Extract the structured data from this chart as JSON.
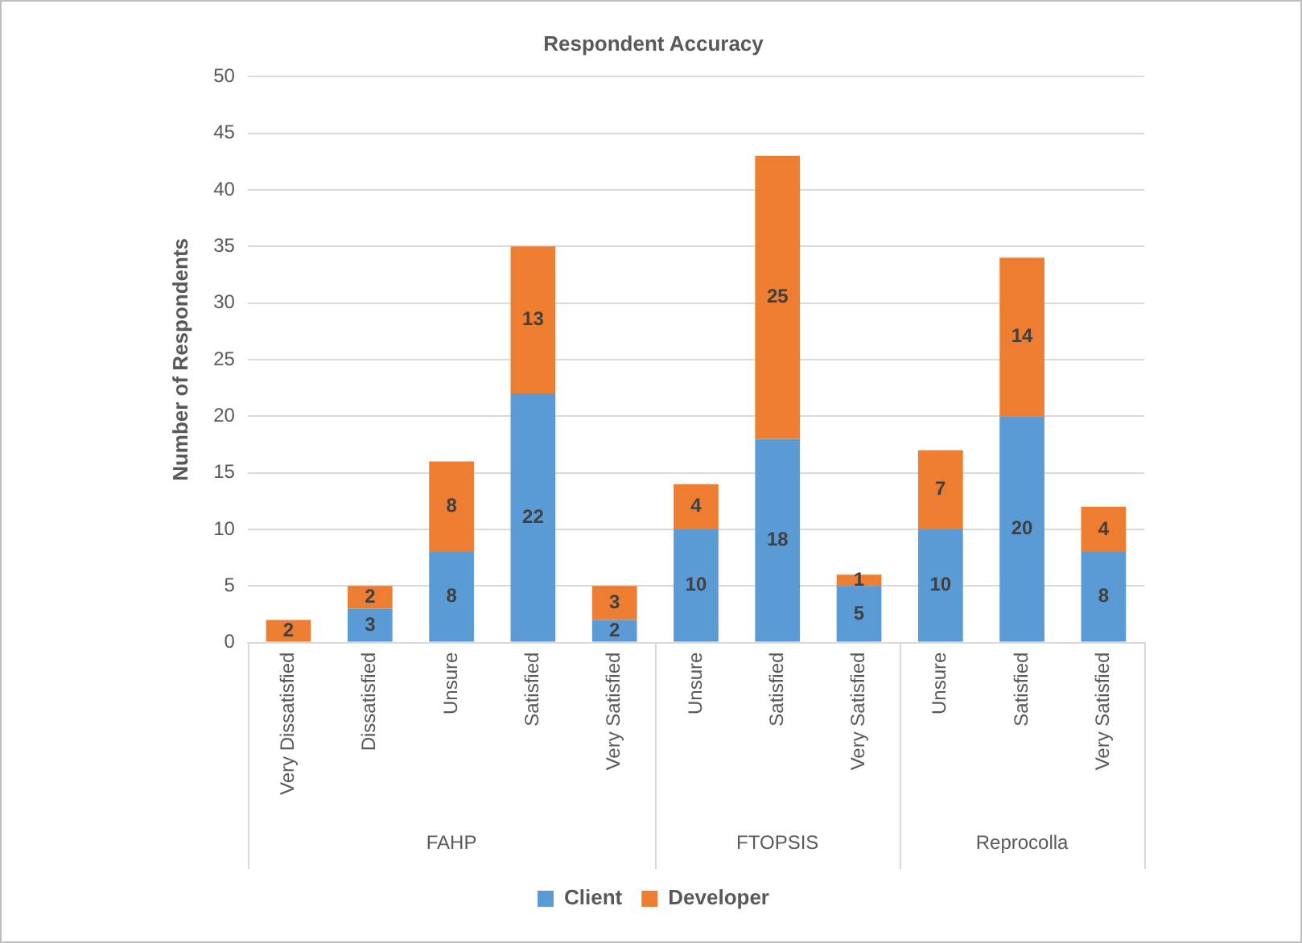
{
  "chart_data": {
    "type": "bar",
    "title": "Respondent Accuracy",
    "ylabel": "Number of Respondents",
    "categories": [
      "Very Dissatisfied",
      "Dissatisfied",
      "Unsure",
      "Satisfied",
      "Very Satisfied",
      "Unsure",
      "Satisfied",
      "Very Satisfied",
      "Unsure",
      "Satisfied",
      "Very Satisfied"
    ],
    "series": [
      {
        "name": "Client",
        "color": "#5b9bd5",
        "values": [
          null,
          3,
          8,
          22,
          2,
          10,
          18,
          5,
          10,
          20,
          8
        ]
      },
      {
        "name": "Developer",
        "color": "#ed7d31",
        "values": [
          2,
          2,
          8,
          13,
          3,
          4,
          25,
          1,
          7,
          14,
          4
        ]
      }
    ],
    "stacked": true,
    "ylim": [
      0,
      50
    ],
    "yticks": [
      0,
      5,
      10,
      15,
      20,
      25,
      30,
      35,
      40,
      45,
      50
    ],
    "grid": "y",
    "legend": "bottom",
    "data_labels": true,
    "annotations": [
      "FAHP",
      "FTOPSIS",
      "Reprocolla"
    ]
  }
}
